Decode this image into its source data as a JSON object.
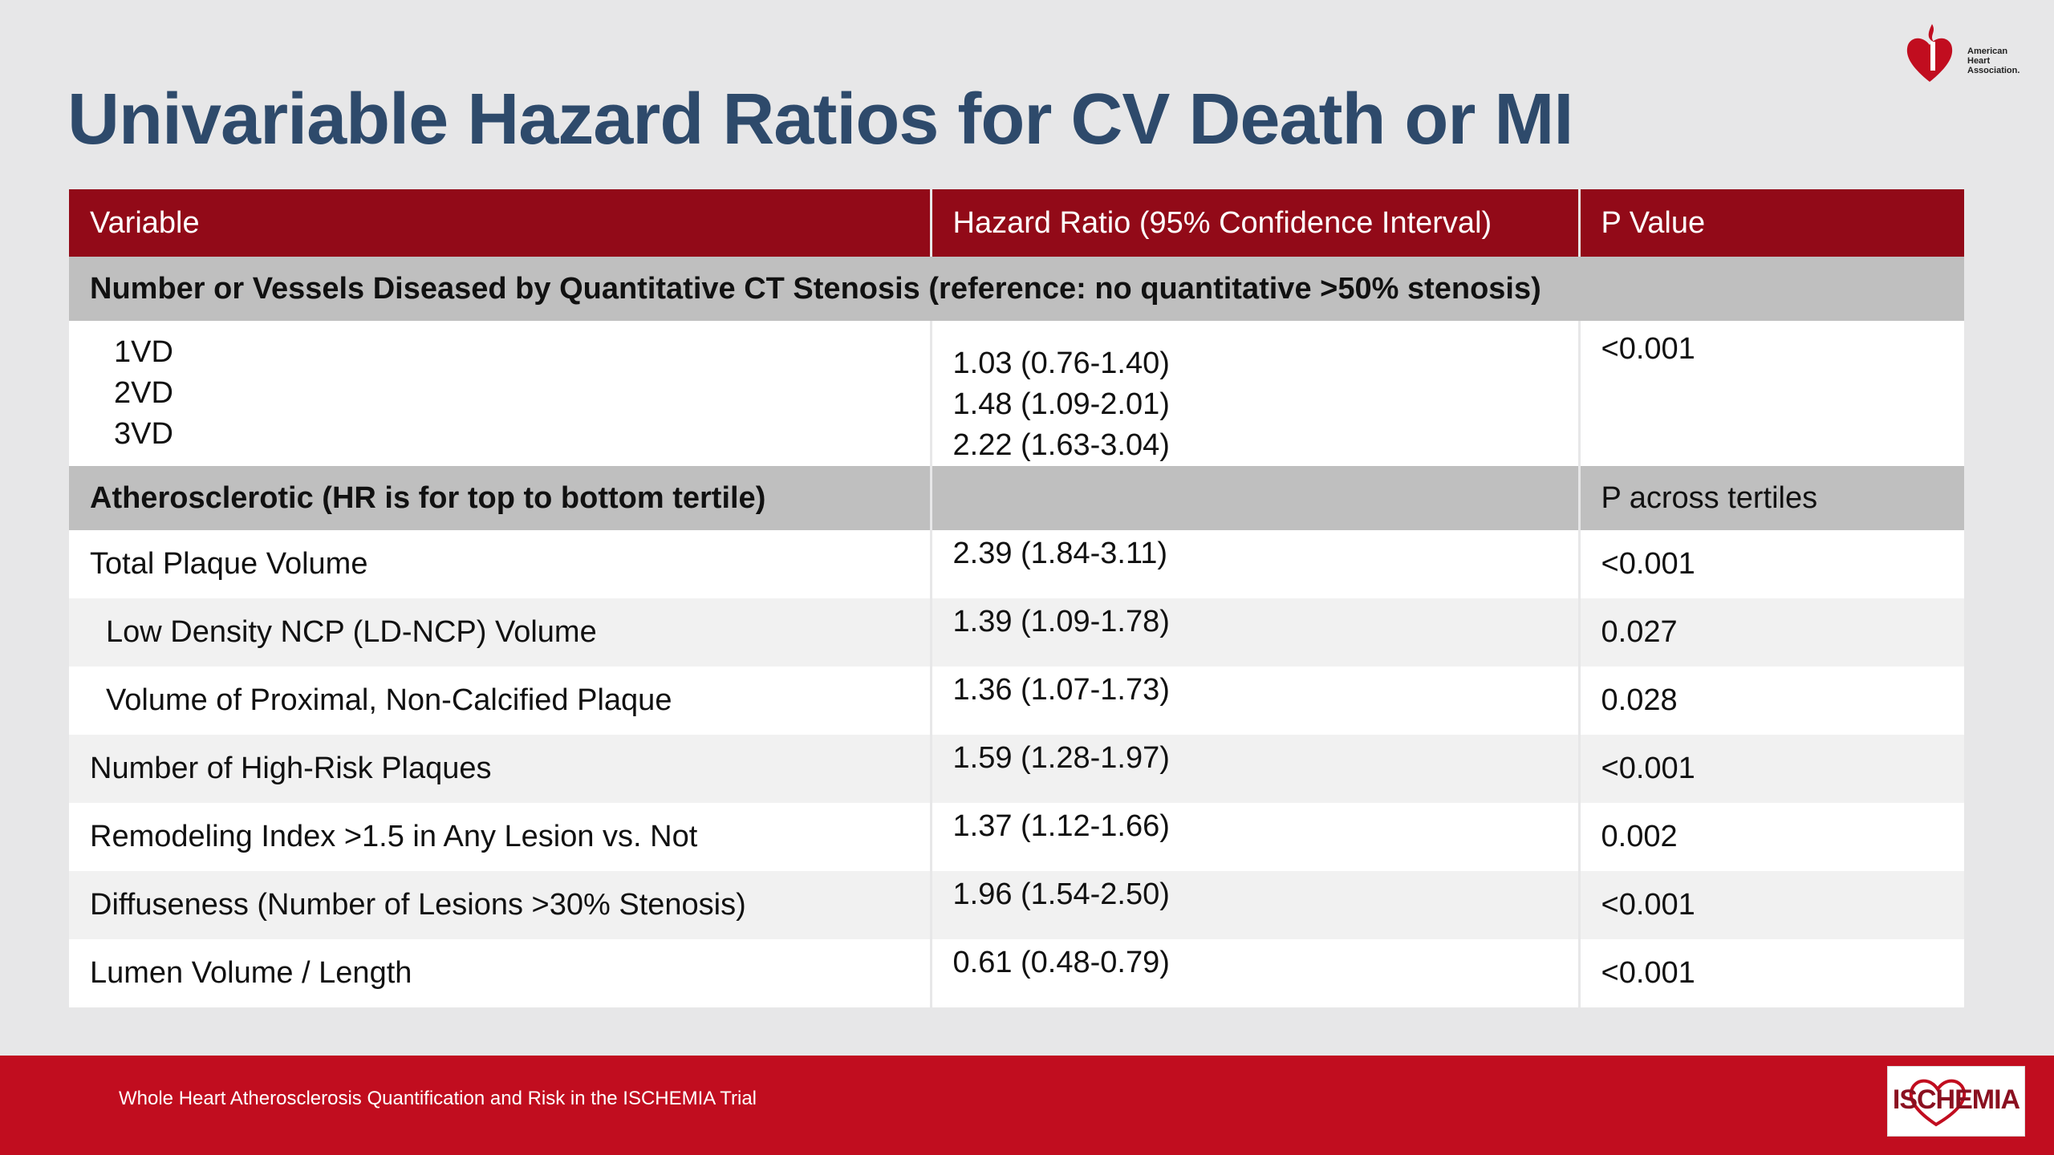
{
  "logo": {
    "aha_icon": "heart-torch-icon",
    "aha_lines": [
      "American",
      "Heart",
      "Association."
    ],
    "aha_color": "#c10d1f"
  },
  "title": "Univariable Hazard Ratios for CV Death or MI",
  "table": {
    "headers": [
      "Variable",
      "Hazard Ratio (95% Confidence Interval)",
      "P Value"
    ],
    "section1": {
      "label": "Number or Vessels Diseased by Quantitative CT Stenosis (reference: no quantitative >50% stenosis)",
      "vessels": [
        "1VD",
        "2VD",
        "3VD"
      ],
      "hrs": [
        "1.03 (0.76-1.40)",
        "1.48 (1.09-2.01)",
        "2.22 (1.63-3.04)"
      ],
      "p": "<0.001"
    },
    "section2": {
      "label": "Atherosclerotic (HR is for top to bottom tertile)",
      "p_label": "P across tertiles"
    },
    "rows": [
      {
        "variable": "Total Plaque Volume",
        "hr": "2.39 (1.84-3.11)",
        "p": "<0.001"
      },
      {
        "variable": "Low Density NCP (LD-NCP) Volume",
        "hr": "1.39 (1.09-1.78)",
        "p": "0.027"
      },
      {
        "variable": "Volume of Proximal, Non-Calcified Plaque",
        "hr": "1.36 (1.07-1.73)",
        "p": "0.028"
      },
      {
        "variable": "Number of High-Risk Plaques",
        "hr": "1.59 (1.28-1.97)",
        "p": "<0.001"
      },
      {
        "variable": "Remodeling Index >1.5 in Any Lesion vs. Not",
        "hr": "1.37 (1.12-1.66)",
        "p": "0.002"
      },
      {
        "variable": "Diffuseness (Number of Lesions >30% Stenosis)",
        "hr": "1.96 (1.54-2.50)",
        "p": "<0.001"
      },
      {
        "variable": "Lumen Volume / Length",
        "hr": "0.61 (0.48-0.79)",
        "p": "<0.001"
      }
    ]
  },
  "footer": {
    "text": "Whole Heart Atherosclerosis Quantification and Risk in the ISCHEMIA Trial",
    "logo_text": "ISCHEMIA",
    "color": "#c10d1f"
  }
}
